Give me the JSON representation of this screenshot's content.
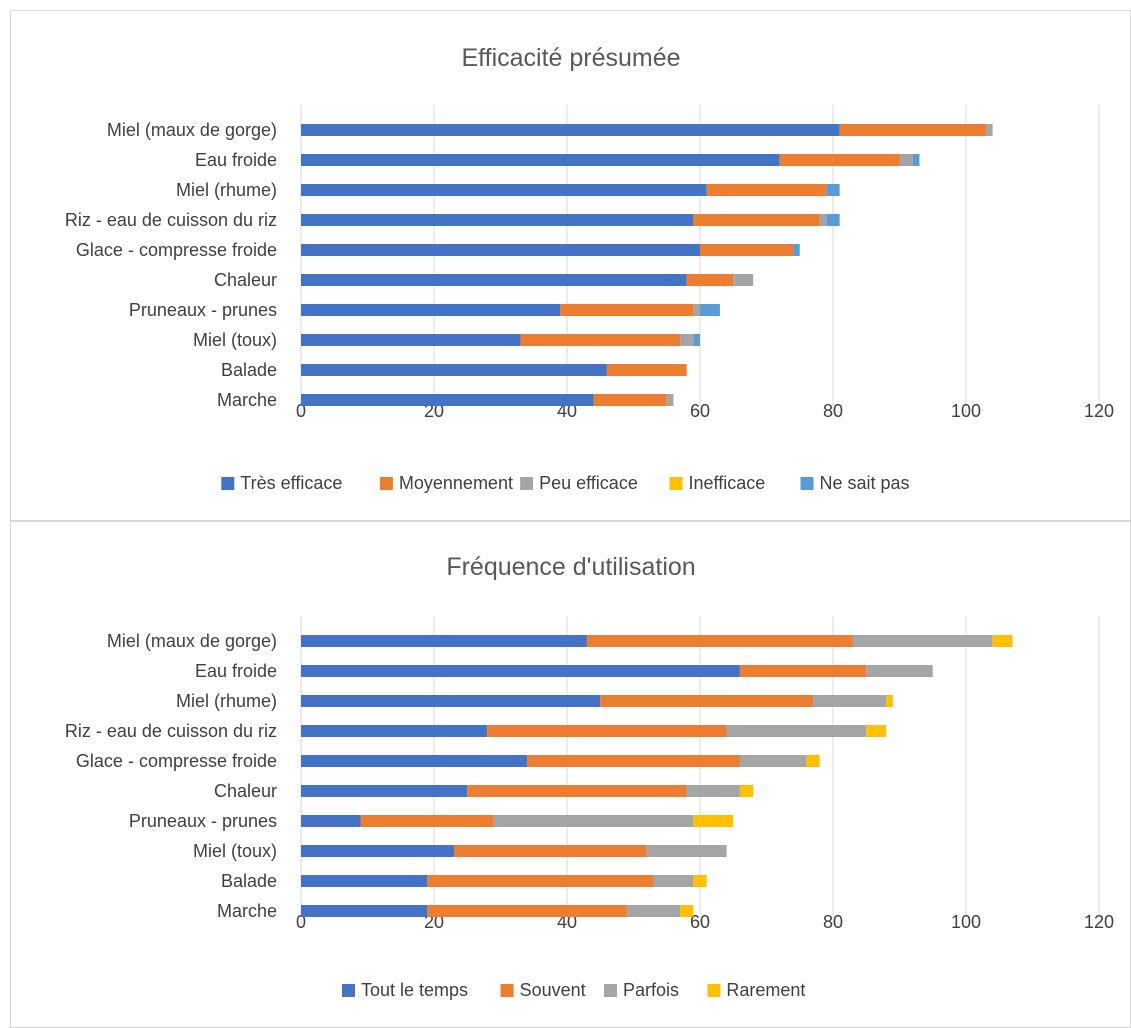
{
  "chart_data": [
    {
      "type": "bar",
      "orientation": "horizontal",
      "stacked": true,
      "title": "Efficacité présumée",
      "xlabel": "",
      "ylabel": "",
      "xlim": [
        0,
        120
      ],
      "xticks": [
        "0",
        "20",
        "40",
        "60",
        "80",
        "100",
        "120"
      ],
      "grid": true,
      "legend_position": "bottom",
      "categories": [
        "Miel (maux de gorge)",
        "Eau froide",
        "Miel (rhume)",
        "Riz - eau de cuisson du riz",
        "Glace - compresse froide",
        "Chaleur",
        "Pruneaux - prunes",
        "Miel (toux)",
        "Balade",
        "Marche"
      ],
      "series": [
        {
          "name": "Très efficace",
          "color": "#4472C4",
          "values": [
            81,
            72,
            61,
            59,
            60,
            58,
            39,
            33,
            46,
            44
          ]
        },
        {
          "name": "Moyennement",
          "color": "#ED7D31",
          "values": [
            22,
            18,
            18,
            19,
            14,
            7,
            20,
            24,
            12,
            11
          ]
        },
        {
          "name": "Peu efficace",
          "color": "#A5A5A5",
          "values": [
            1,
            2,
            0,
            1,
            0,
            3,
            1,
            2,
            0,
            1
          ]
        },
        {
          "name": "Inefficace",
          "color": "#FFC000",
          "values": [
            0,
            0,
            0,
            0,
            0,
            0,
            0,
            0,
            0,
            0
          ]
        },
        {
          "name": "Ne sait pas",
          "color": "#5B9BD5",
          "values": [
            0,
            1,
            2,
            2,
            1,
            0,
            3,
            1,
            0,
            0
          ]
        }
      ]
    },
    {
      "type": "bar",
      "orientation": "horizontal",
      "stacked": true,
      "title": "Fréquence d'utilisation",
      "xlabel": "",
      "ylabel": "",
      "xlim": [
        0,
        120
      ],
      "xticks": [
        "0",
        "20",
        "40",
        "60",
        "80",
        "100",
        "120"
      ],
      "grid": true,
      "legend_position": "bottom",
      "categories": [
        "Miel (maux de gorge)",
        "Eau froide",
        "Miel (rhume)",
        "Riz - eau de cuisson du riz",
        "Glace - compresse froide",
        "Chaleur",
        "Pruneaux - prunes",
        "Miel (toux)",
        "Balade",
        "Marche"
      ],
      "series": [
        {
          "name": "Tout le temps",
          "color": "#4472C4",
          "values": [
            43,
            66,
            45,
            28,
            34,
            25,
            9,
            23,
            19,
            19
          ]
        },
        {
          "name": "Souvent",
          "color": "#ED7D31",
          "values": [
            40,
            19,
            32,
            36,
            32,
            33,
            20,
            29,
            34,
            30
          ]
        },
        {
          "name": "Parfois",
          "color": "#A5A5A5",
          "values": [
            21,
            10,
            11,
            21,
            10,
            8,
            30,
            12,
            6,
            8
          ]
        },
        {
          "name": "Rarement",
          "color": "#FFC000",
          "values": [
            3,
            0,
            1,
            3,
            2,
            2,
            6,
            0,
            2,
            2
          ]
        }
      ]
    }
  ]
}
